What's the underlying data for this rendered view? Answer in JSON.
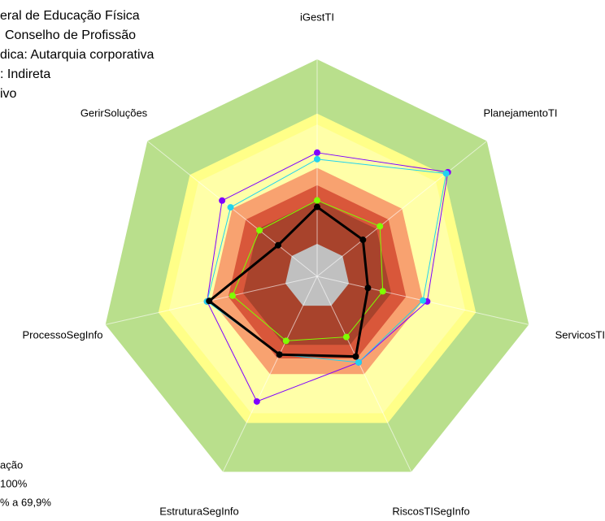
{
  "chart_data": {
    "type": "radar",
    "header_lines": [
      "eral de Educação Física",
      "Conselho de Profissão",
      "dica: Autarquia corporativa",
      ": Indireta",
      "ivo"
    ],
    "legend_lines": [
      "ação",
      "100%",
      "% a 69,9%"
    ],
    "categories": [
      "iGestTI",
      "PlanejamentoTI",
      "ServicosTI",
      "RiscosTISegInfo",
      "EstruturaSegInfo",
      "ProcessoSegInfo",
      "GerirSoluções"
    ],
    "rlim": [
      0,
      100
    ],
    "bands": [
      {
        "value": 100,
        "color": "#b9df8c"
      },
      {
        "value": 75,
        "color": "#ffff88"
      },
      {
        "value": 70,
        "color": "#ffffa8"
      },
      {
        "value": 50,
        "color": "#f8a270"
      },
      {
        "value": 42,
        "color": "#d9573a"
      },
      {
        "value": 35,
        "color": "#a8432c"
      },
      {
        "value": 15,
        "color": "#c0c0c0"
      }
    ],
    "series": [
      {
        "color": "#7f00ff",
        "values": [
          57,
          77,
          52,
          44,
          64,
          52,
          56
        ]
      },
      {
        "color": "#22d3ee",
        "values": [
          54,
          76,
          50,
          44,
          40,
          52,
          51
        ]
      },
      {
        "color": "#7fff00",
        "values": [
          35,
          37,
          31,
          31,
          33,
          40,
          34
        ]
      },
      {
        "color": "#000000",
        "values": [
          32,
          27,
          24,
          41,
          40,
          51,
          23
        ]
      }
    ]
  }
}
